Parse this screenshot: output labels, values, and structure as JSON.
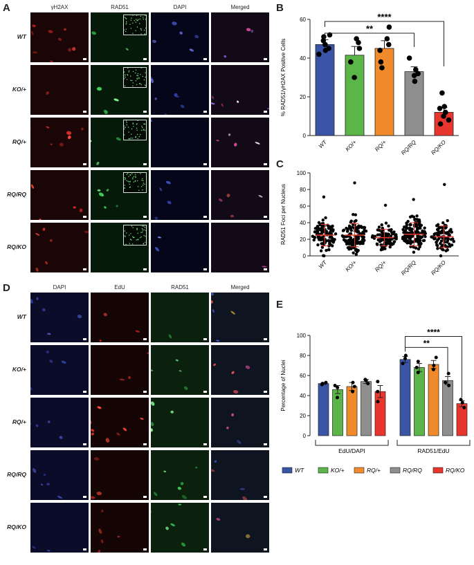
{
  "panels": {
    "A": {
      "letter": "A",
      "headers": [
        "γH2AX",
        "RAD51",
        "DAPI",
        "Merged"
      ],
      "rows": [
        "WT",
        "KO/+",
        "RQ/+",
        "RQ/RQ",
        "RQ/KO"
      ]
    },
    "D": {
      "letter": "D",
      "headers": [
        "DAPI",
        "EdU",
        "RAD51",
        "Merged"
      ],
      "rows": [
        "WT",
        "KO/+",
        "RQ/+",
        "RQ/RQ",
        "RQ/KO"
      ]
    }
  },
  "colors": {
    "WT": "#3a55a6",
    "KO/+": "#5cb548",
    "RQ/+": "#f08a2a",
    "RQ/RQ": "#8e8e8e",
    "RQ/KO": "#e8362f",
    "mean_line": "#e8362f"
  },
  "chart_data": [
    {
      "panel": "B",
      "type": "bar",
      "ylabel": "% RAD51/γH2AX Positive Cells",
      "ylim": [
        0,
        60
      ],
      "yticks": [
        0,
        20,
        40,
        60
      ],
      "categories": [
        "WT",
        "KO/+",
        "RQ/+",
        "RQ/RQ",
        "RQ/KO"
      ],
      "values": [
        47,
        41.5,
        45,
        33,
        12
      ],
      "errors": [
        2.5,
        4.5,
        4,
        2.5,
        2.5
      ],
      "points": [
        [
          51,
          52,
          47,
          45,
          44,
          49,
          42
        ],
        [
          50,
          48,
          38,
          30,
          45
        ],
        [
          56,
          50,
          47,
          44,
          38,
          35
        ],
        [
          40,
          34,
          31,
          32,
          28
        ],
        [
          22,
          15,
          14,
          10,
          8,
          6,
          12
        ]
      ],
      "significance": [
        {
          "from": "WT",
          "to": "RQ/RQ",
          "label": "**"
        },
        {
          "from": "WT",
          "to": "RQ/KO",
          "label": "****"
        }
      ]
    },
    {
      "panel": "C",
      "type": "scatter",
      "ylabel": "RAD51 Foci per Nucleus",
      "ylim": [
        0,
        100
      ],
      "yticks": [
        0,
        20,
        40,
        60,
        80,
        100
      ],
      "categories": [
        "WT",
        "KO/+",
        "RQ/+",
        "RQ/RQ",
        "RQ/KO"
      ],
      "means": [
        25,
        25,
        22,
        26,
        23
      ],
      "sd": [
        13,
        14,
        10,
        14,
        13
      ],
      "max": [
        71,
        88,
        61,
        68,
        86
      ],
      "n": [
        110,
        120,
        90,
        120,
        90
      ]
    },
    {
      "panel": "E",
      "type": "bar",
      "ylabel": "Percentage of Nuclei",
      "ylim": [
        0,
        100
      ],
      "yticks": [
        0,
        20,
        40,
        60,
        80,
        100
      ],
      "groups": [
        "EdU/DAPI",
        "RAD51/EdU"
      ],
      "series": [
        {
          "name": "WT",
          "values": [
            52,
            76
          ],
          "errors": [
            1,
            3
          ],
          "points": [
            [
              52,
              51,
              53
            ],
            [
              80,
              72,
              77
            ]
          ]
        },
        {
          "name": "KO/+",
          "values": [
            46,
            68
          ],
          "errors": [
            4,
            4
          ],
          "points": [
            [
              50,
              38,
              48
            ],
            [
              74,
              63,
              68
            ]
          ]
        },
        {
          "name": "RQ/+",
          "values": [
            49,
            71
          ],
          "errors": [
            4,
            4
          ],
          "points": [
            [
              53,
              44,
              49
            ],
            [
              78,
              66,
              70
            ]
          ]
        },
        {
          "name": "RQ/RQ",
          "values": [
            54,
            55
          ],
          "errors": [
            2,
            4
          ],
          "points": [
            [
              56,
              52,
              55
            ],
            [
              62,
              50,
              53
            ]
          ]
        },
        {
          "name": "RQ/KO",
          "values": [
            44,
            32
          ],
          "errors": [
            6,
            3
          ],
          "points": [
            [
              54,
              34,
              44
            ],
            [
              36,
              28,
              33
            ]
          ]
        }
      ],
      "significance": [
        {
          "from": "WT",
          "to": "RQ/RQ",
          "group": "RAD51/EdU",
          "label": "**"
        },
        {
          "from": "WT",
          "to": "RQ/KO",
          "group": "RAD51/EdU",
          "label": "****"
        }
      ]
    }
  ],
  "labels": {
    "B": "B",
    "C": "C",
    "E": "E"
  }
}
